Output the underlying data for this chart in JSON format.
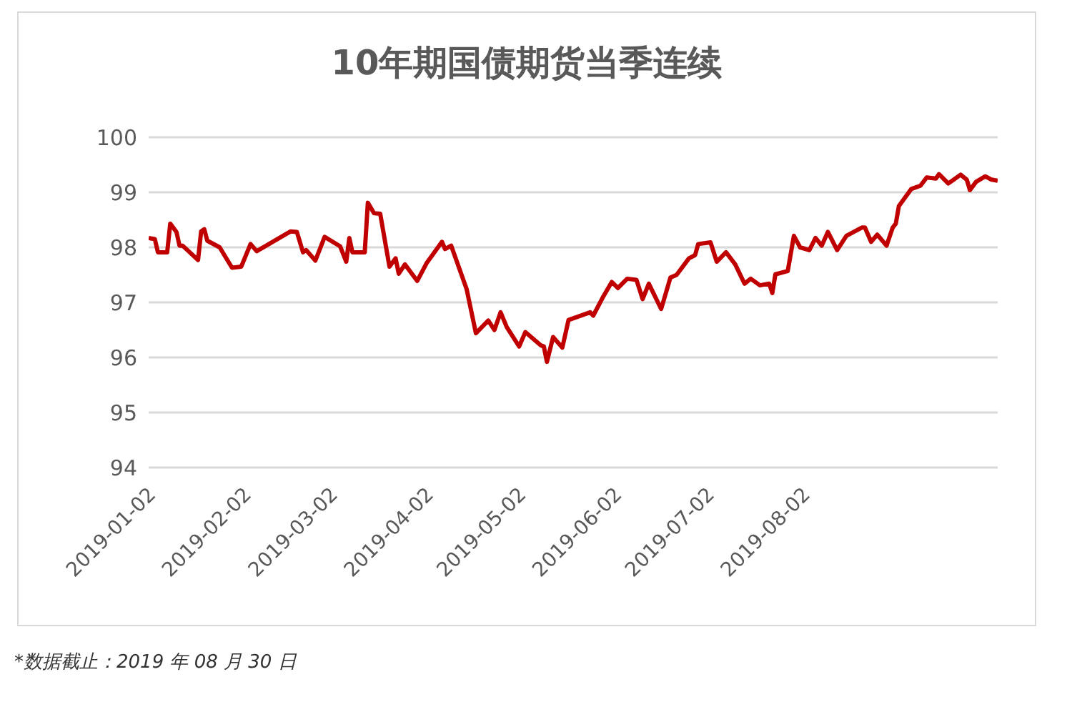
{
  "chart_data": {
    "type": "line",
    "title": "10年期国债期货当季连续",
    "x": [
      "2019-01-02",
      "2019-01-04",
      "2019-01-05",
      "2019-01-08",
      "2019-01-09",
      "2019-01-11",
      "2019-01-12",
      "2019-01-13",
      "2019-01-18",
      "2019-01-19",
      "2019-01-20",
      "2019-01-21",
      "2019-01-25",
      "2019-01-29",
      "2019-02-01",
      "2019-02-04",
      "2019-02-06",
      "2019-02-17",
      "2019-02-19",
      "2019-02-21",
      "2019-02-22",
      "2019-02-25",
      "2019-02-28",
      "2019-03-05",
      "2019-03-07",
      "2019-03-08",
      "2019-03-09",
      "2019-03-13",
      "2019-03-14",
      "2019-03-16",
      "2019-03-18",
      "2019-03-21",
      "2019-03-23",
      "2019-03-24",
      "2019-03-26",
      "2019-03-30",
      "2019-04-02",
      "2019-04-07",
      "2019-04-08",
      "2019-04-10",
      "2019-04-15",
      "2019-04-18",
      "2019-04-22",
      "2019-04-24",
      "2019-04-26",
      "2019-04-28",
      "2019-05-02",
      "2019-05-04",
      "2019-05-09",
      "2019-05-10",
      "2019-05-11",
      "2019-05-13",
      "2019-05-16",
      "2019-05-18",
      "2019-05-25",
      "2019-05-26",
      "2019-05-29",
      "2019-06-01",
      "2019-06-03",
      "2019-06-06",
      "2019-06-09",
      "2019-06-11",
      "2019-06-13",
      "2019-06-17",
      "2019-06-20",
      "2019-06-22",
      "2019-06-26",
      "2019-06-28",
      "2019-06-29",
      "2019-07-03",
      "2019-07-05",
      "2019-07-08",
      "2019-07-11",
      "2019-07-14",
      "2019-07-16",
      "2019-07-19",
      "2019-07-22",
      "2019-07-23",
      "2019-07-24",
      "2019-07-28",
      "2019-07-30",
      "2019-08-01",
      "2019-08-04",
      "2019-08-06",
      "2019-08-08",
      "2019-08-10",
      "2019-08-13",
      "2019-08-16",
      "2019-08-21",
      "2019-08-22",
      "2019-08-24",
      "2019-08-26",
      "2019-08-29",
      "2019-08-31",
      "2019-09-01",
      "2019-09-02",
      "2019-09-06",
      "2019-09-09",
      "2019-09-11",
      "2019-09-14",
      "2019-09-15",
      "2019-09-18",
      "2019-09-22",
      "2019-09-24",
      "2019-09-25",
      "2019-09-27",
      "2019-09-30",
      "2019-10-02",
      "2019-10-04"
    ],
    "series": [
      {
        "color": "#c00000",
        "values": [
          98.17,
          98.15,
          97.91,
          97.91,
          98.43,
          98.28,
          98.03,
          98.03,
          97.77,
          98.29,
          98.33,
          98.12,
          98.0,
          97.63,
          97.65,
          98.06,
          97.93,
          98.29,
          98.28,
          97.91,
          97.95,
          97.76,
          98.19,
          98.02,
          97.74,
          98.17,
          97.91,
          97.91,
          98.81,
          98.62,
          98.61,
          97.65,
          97.8,
          97.52,
          97.69,
          97.39,
          97.71,
          98.1,
          97.97,
          98.03,
          97.24,
          96.44,
          96.67,
          96.5,
          96.82,
          96.55,
          96.2,
          96.46,
          96.22,
          96.2,
          95.92,
          96.37,
          96.18,
          96.68,
          96.82,
          96.76,
          97.08,
          97.37,
          97.26,
          97.43,
          97.41,
          97.06,
          97.34,
          96.88,
          97.45,
          97.5,
          97.8,
          97.86,
          98.06,
          98.09,
          97.74,
          97.91,
          97.69,
          97.34,
          97.43,
          97.31,
          97.34,
          97.17,
          97.51,
          97.57,
          98.21,
          98.0,
          97.95,
          98.17,
          98.03,
          98.28,
          97.95,
          98.21,
          98.36,
          98.36,
          98.1,
          98.23,
          98.03,
          98.36,
          98.43,
          98.75,
          99.06,
          99.12,
          99.27,
          99.25,
          99.33,
          99.16,
          99.32,
          99.23,
          99.04,
          99.19,
          99.29,
          99.23,
          99.21
        ]
      }
    ],
    "xlim": [
      "2019-01-02",
      "2019-10-04"
    ],
    "xticks": [
      "2019-01-02",
      "2019-02-02",
      "2019-03-02",
      "2019-04-02",
      "2019-05-02",
      "2019-06-02",
      "2019-07-02",
      "2019-08-02"
    ],
    "ylim": [
      94,
      100
    ],
    "yticks": [
      94,
      95,
      96,
      97,
      98,
      99,
      100
    ],
    "grid": "y",
    "line_style": "solid",
    "annotations": [
      "*数据截止：2019 年 08 月 30 日"
    ]
  }
}
